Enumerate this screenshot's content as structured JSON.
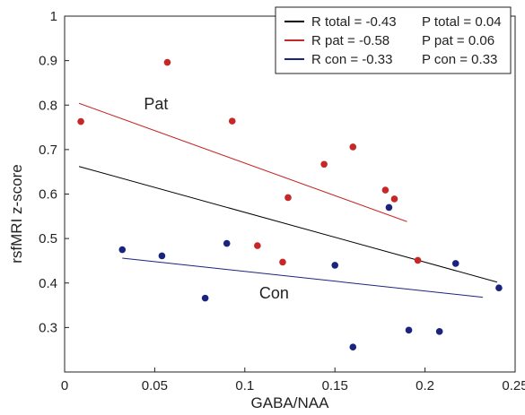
{
  "chart_data": {
    "type": "scatter",
    "title": "",
    "xlabel": "GABA/NAA",
    "ylabel": "rsfMRI z-score",
    "xlim": [
      0,
      0.25
    ],
    "ylim": [
      0.2,
      1.0
    ],
    "x_ticks": [
      0,
      0.05,
      0.1,
      0.15,
      0.2,
      0.25
    ],
    "x_tick_labels": [
      "0",
      "0.05",
      "0.1",
      "0.15",
      "0.2",
      "0.25"
    ],
    "y_ticks": [
      0.3,
      0.4,
      0.5,
      0.6,
      0.7,
      0.8,
      0.9,
      1.0
    ],
    "y_tick_labels": [
      "0.3",
      "0.4",
      "0.5",
      "0.6",
      "0.7",
      "0.8",
      "0.9",
      "1"
    ],
    "grid": false,
    "legend_position": "top-right",
    "series": [
      {
        "name": "Pat",
        "color": "#c62828",
        "points": [
          [
            0.009,
            0.763
          ],
          [
            0.057,
            0.896
          ],
          [
            0.093,
            0.764
          ],
          [
            0.107,
            0.484
          ],
          [
            0.121,
            0.447
          ],
          [
            0.124,
            0.592
          ],
          [
            0.144,
            0.667
          ],
          [
            0.16,
            0.706
          ],
          [
            0.178,
            0.609
          ],
          [
            0.183,
            0.589
          ],
          [
            0.196,
            0.451
          ]
        ]
      },
      {
        "name": "Con",
        "color": "#1a237e",
        "points": [
          [
            0.032,
            0.475
          ],
          [
            0.054,
            0.461
          ],
          [
            0.078,
            0.366
          ],
          [
            0.09,
            0.489
          ],
          [
            0.15,
            0.44
          ],
          [
            0.16,
            0.256
          ],
          [
            0.18,
            0.57
          ],
          [
            0.191,
            0.294
          ],
          [
            0.208,
            0.291
          ],
          [
            0.217,
            0.444
          ],
          [
            0.241,
            0.389
          ]
        ]
      }
    ],
    "regression_lines": [
      {
        "color": "#000000",
        "x": [
          0.008,
          0.24
        ],
        "y": [
          0.662,
          0.402
        ]
      },
      {
        "color": "#c62828",
        "x": [
          0.008,
          0.19
        ],
        "y": [
          0.804,
          0.538
        ]
      },
      {
        "color": "#1a237e",
        "x": [
          0.032,
          0.232
        ],
        "y": [
          0.456,
          0.368
        ]
      }
    ],
    "group_labels": [
      {
        "text": "Pat",
        "x": 0.044,
        "y": 0.79
      },
      {
        "text": "Con",
        "x": 0.108,
        "y": 0.365
      }
    ],
    "legend": [
      {
        "color": "#000000",
        "r_text": "R total = -0.43",
        "p_text": "P total = 0.04"
      },
      {
        "color": "#c62828",
        "r_text": "R pat = -0.58",
        "p_text": "P pat = 0.06"
      },
      {
        "color": "#1a237e",
        "r_text": "R con = -0.33",
        "p_text": "P con = 0.33"
      }
    ]
  }
}
